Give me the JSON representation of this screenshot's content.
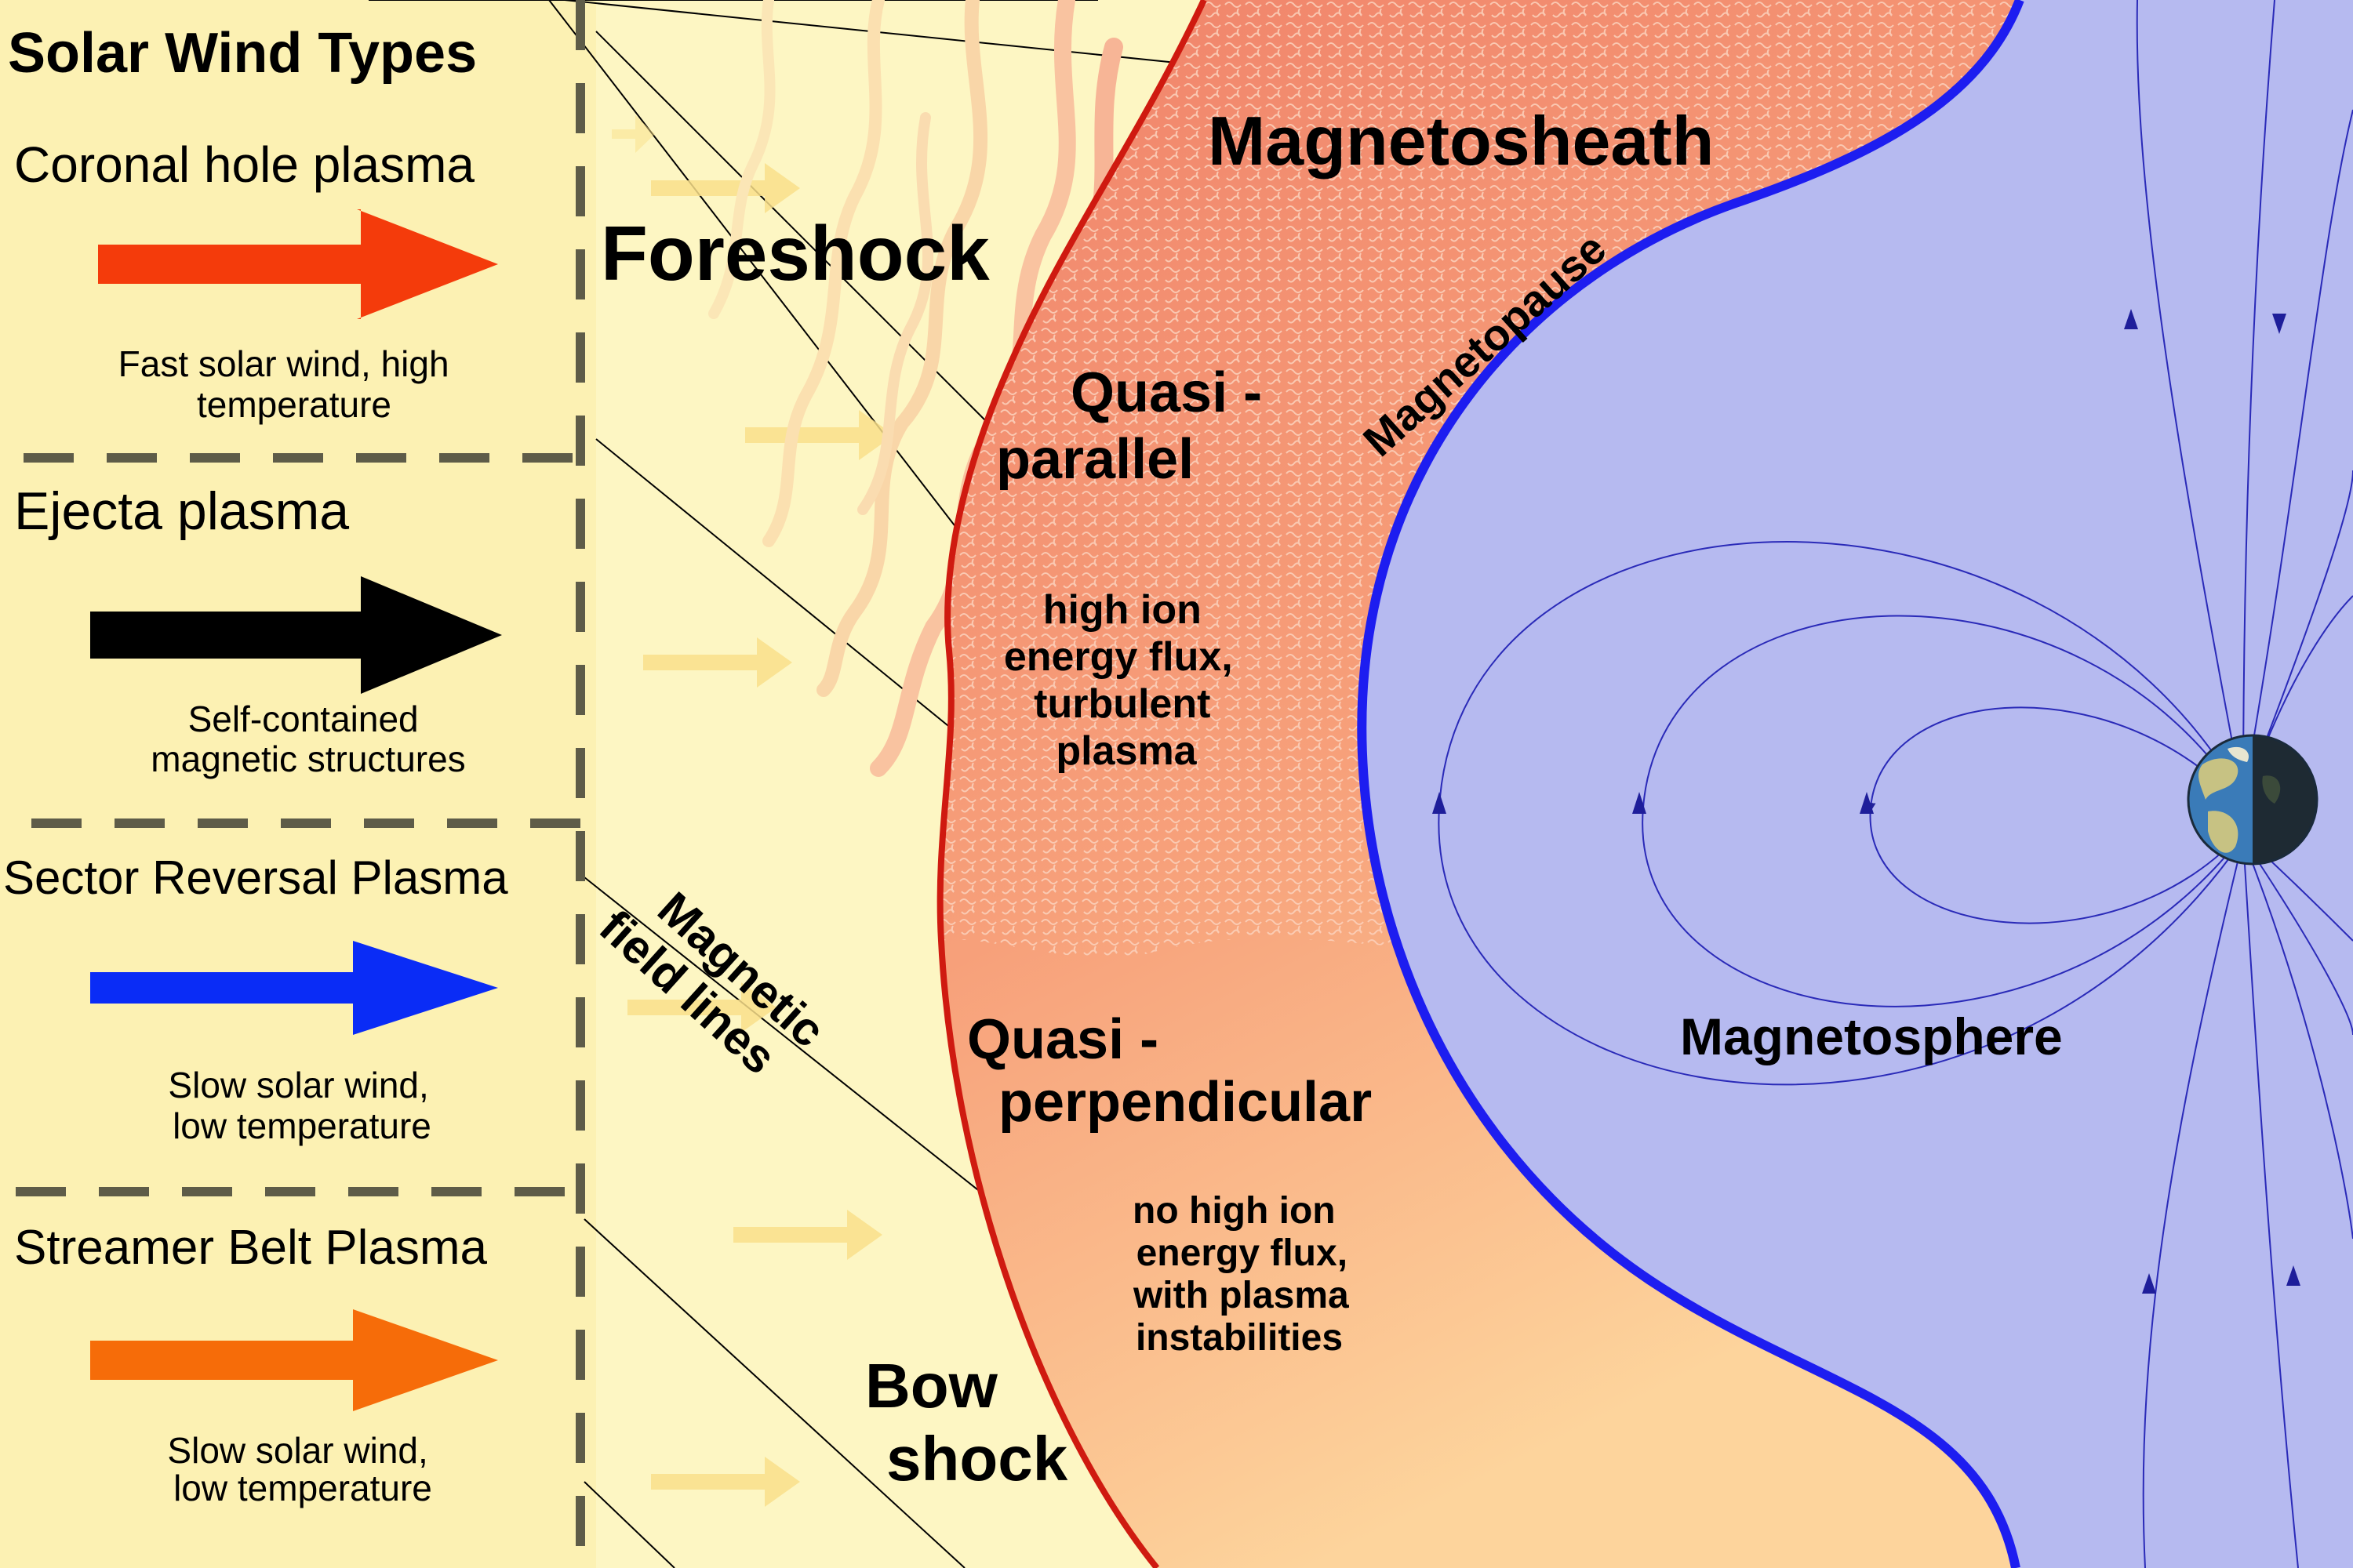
{
  "legend": {
    "title": "Solar Wind Types",
    "items": [
      {
        "name": "Coronal hole plasma",
        "description_lines": [
          "Fast solar wind, high",
          "temperature"
        ],
        "arrow_color": "#f43b0b"
      },
      {
        "name": "Ejecta plasma",
        "description_lines": [
          "Self-contained",
          "magnetic structures"
        ],
        "arrow_color": "#000000"
      },
      {
        "name": "Sector Reversal Plasma",
        "description_lines": [
          "Slow solar wind,",
          "low temperature"
        ],
        "arrow_color": "#0a2cf6"
      },
      {
        "name": "Streamer Belt Plasma",
        "description_lines": [
          "Slow solar wind,",
          "low temperature"
        ],
        "arrow_color": "#f66c09"
      }
    ]
  },
  "regions": {
    "foreshock": "Foreshock",
    "magnetosheath": "Magnetosheath",
    "magnetopause": "Magnetopause",
    "magnetosphere": "Magnetosphere",
    "bow_shock_lines": [
      "Bow",
      "shock"
    ],
    "magnetic_field_lines_lines": [
      "Magnetic",
      "field lines"
    ]
  },
  "quasi_parallel": {
    "title_lines": [
      "Quasi -",
      "parallel"
    ],
    "description_lines": [
      "high ion",
      "energy flux,",
      "turbulent",
      "plasma"
    ]
  },
  "quasi_perpendicular": {
    "title_lines": [
      "Quasi -",
      "perpendicular"
    ],
    "description_lines": [
      "no high ion",
      "energy flux,",
      "with plasma",
      "instabilities"
    ]
  },
  "colors": {
    "solar_wind_background": "#fdf6c3",
    "magnetosheath_top": "#f28a6c",
    "magnetosheath_bottom": "#fdd39a",
    "bow_shock": "#cf1a10",
    "magnetopause": "#1d1df0",
    "magnetosphere_fill": "#b6baf0",
    "field_line": "#2a2ab8",
    "divider": "#5e5c48"
  }
}
